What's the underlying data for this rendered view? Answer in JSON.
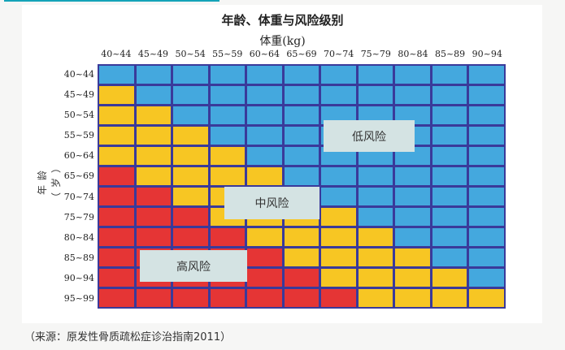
{
  "chart_data": {
    "type": "heatmap",
    "title": "年龄、体重与风险级别",
    "xlabel": "体重(kg)",
    "ylabel": "年龄（岁）",
    "x_categories": [
      "40~44",
      "45~49",
      "50~54",
      "55~59",
      "60~64",
      "65~69",
      "70~74",
      "75~79",
      "80~84",
      "85~89",
      "90~94"
    ],
    "y_categories": [
      "40~44",
      "45~49",
      "50~54",
      "55~59",
      "60~64",
      "65~69",
      "70~74",
      "75~79",
      "80~84",
      "85~89",
      "90~94",
      "95~99"
    ],
    "legend": {
      "B": "低风险",
      "Y": "中风险",
      "R": "高风险"
    },
    "colors": {
      "B": "#44a8de",
      "Y": "#f7c623",
      "R": "#e53535",
      "grid": "#3a3a9a"
    },
    "values": [
      [
        "B",
        "B",
        "B",
        "B",
        "B",
        "B",
        "B",
        "B",
        "B",
        "B",
        "B"
      ],
      [
        "Y",
        "B",
        "B",
        "B",
        "B",
        "B",
        "B",
        "B",
        "B",
        "B",
        "B"
      ],
      [
        "Y",
        "Y",
        "B",
        "B",
        "B",
        "B",
        "B",
        "B",
        "B",
        "B",
        "B"
      ],
      [
        "Y",
        "Y",
        "Y",
        "B",
        "B",
        "B",
        "B",
        "B",
        "B",
        "B",
        "B"
      ],
      [
        "Y",
        "Y",
        "Y",
        "Y",
        "B",
        "B",
        "B",
        "B",
        "B",
        "B",
        "B"
      ],
      [
        "R",
        "Y",
        "Y",
        "Y",
        "Y",
        "B",
        "B",
        "B",
        "B",
        "B",
        "B"
      ],
      [
        "R",
        "R",
        "Y",
        "Y",
        "Y",
        "Y",
        "B",
        "B",
        "B",
        "B",
        "B"
      ],
      [
        "R",
        "R",
        "R",
        "Y",
        "Y",
        "Y",
        "Y",
        "B",
        "B",
        "B",
        "B"
      ],
      [
        "R",
        "R",
        "R",
        "R",
        "Y",
        "Y",
        "Y",
        "Y",
        "B",
        "B",
        "B"
      ],
      [
        "R",
        "R",
        "R",
        "R",
        "R",
        "Y",
        "Y",
        "Y",
        "Y",
        "B",
        "B"
      ],
      [
        "R",
        "R",
        "R",
        "R",
        "R",
        "R",
        "Y",
        "Y",
        "Y",
        "Y",
        "B"
      ],
      [
        "R",
        "R",
        "R",
        "R",
        "R",
        "R",
        "R",
        "Y",
        "Y",
        "Y",
        "Y"
      ]
    ],
    "annotations": [
      {
        "text": "低风险",
        "region": "low"
      },
      {
        "text": "中风险",
        "region": "medium"
      },
      {
        "text": "高风险",
        "region": "high"
      }
    ]
  },
  "caption": "（来源：原发性骨质疏松症诊治指南2011）"
}
